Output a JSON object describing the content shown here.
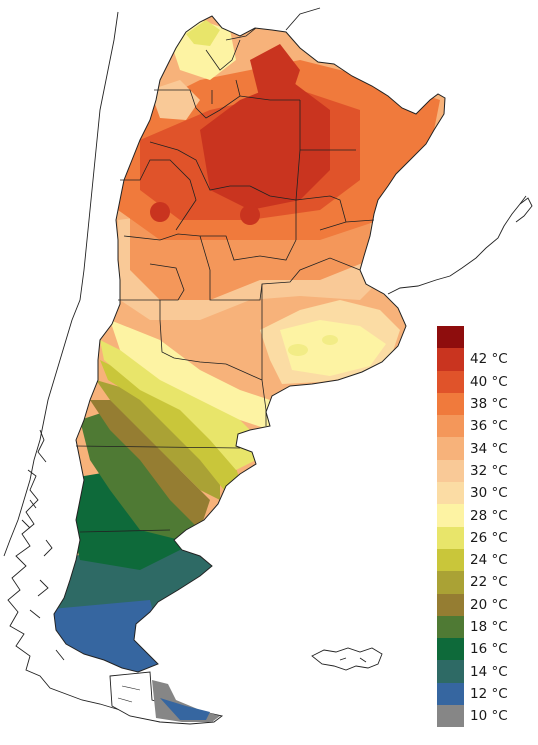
{
  "legend": {
    "items": [
      {
        "label": "",
        "color": "#8e0d0d"
      },
      {
        "label": "42 °C",
        "color": "#c9341f"
      },
      {
        "label": "40 °C",
        "color": "#e0532a"
      },
      {
        "label": "38 °C",
        "color": "#f07a3c"
      },
      {
        "label": "36 °C",
        "color": "#f4975a"
      },
      {
        "label": "34 °C",
        "color": "#f7b27a"
      },
      {
        "label": "32 °C",
        "color": "#f9c997"
      },
      {
        "label": "30 °C",
        "color": "#fbdca4"
      },
      {
        "label": "28 °C",
        "color": "#fdf3a3"
      },
      {
        "label": "26 °C",
        "color": "#e8e56a"
      },
      {
        "label": "24 °C",
        "color": "#c9c63a"
      },
      {
        "label": "22 °C",
        "color": "#aaa235"
      },
      {
        "label": "20 °C",
        "color": "#957d32"
      },
      {
        "label": "18 °C",
        "color": "#4f7a34"
      },
      {
        "label": "16 °C",
        "color": "#0e6a3a"
      },
      {
        "label": "14 °C",
        "color": "#2e6a65"
      },
      {
        "label": "12 °C",
        "color": "#3666a0"
      },
      {
        "label": "10 °C",
        "color": "#868686"
      }
    ]
  }
}
